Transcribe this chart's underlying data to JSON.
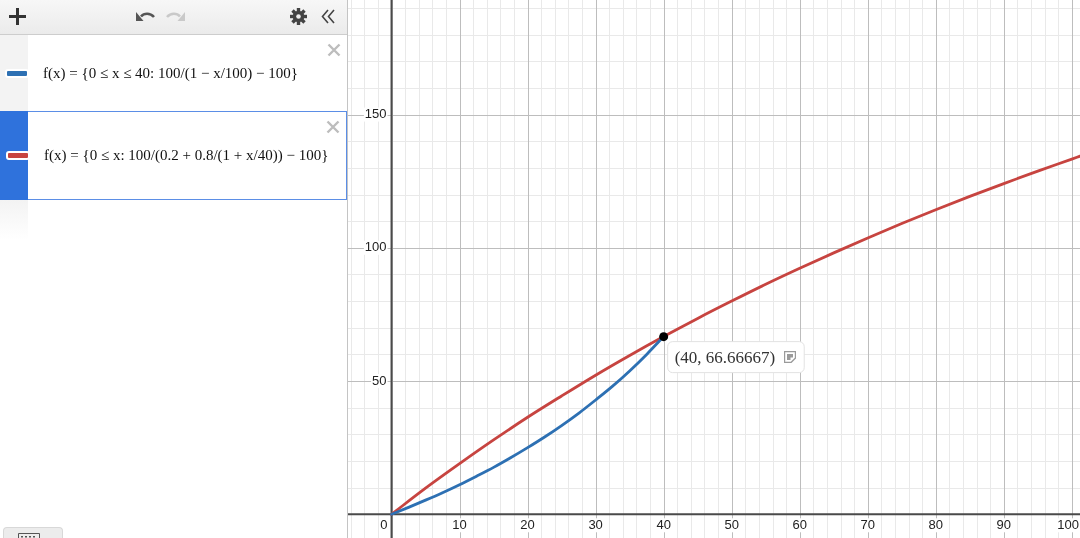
{
  "chart_data": {
    "type": "line",
    "series": [
      {
        "name": "f(x) = {0 ≤ x ≤ 40: 100/(1 − x/100) − 100}",
        "color": "#2d70b3",
        "x": [
          0,
          2.5,
          5,
          7.5,
          10,
          12.5,
          15,
          17.5,
          20,
          22.5,
          25,
          27.5,
          30,
          32.5,
          35,
          37.5,
          40
        ],
        "values": [
          0,
          2.6,
          5.3,
          8.1,
          11.1,
          14.3,
          17.6,
          21.2,
          25,
          29,
          33.3,
          37.9,
          42.9,
          48.1,
          53.8,
          60,
          66.7
        ]
      },
      {
        "name": "f(x) = {0 ≤ x: 100/(0.2 + 0.8/(1 + x/40)) − 100}",
        "color": "#c74440",
        "x": [
          0,
          5,
          10,
          15,
          20,
          25,
          30,
          35,
          40,
          45,
          50,
          55,
          60,
          65,
          70,
          75,
          80,
          85,
          90,
          95,
          100,
          101.2
        ],
        "values": [
          0,
          9.8,
          19,
          27.9,
          36.4,
          44.4,
          52.2,
          59.6,
          66.7,
          73.5,
          80,
          86.3,
          92.3,
          98.1,
          103.7,
          109.1,
          114.3,
          119.3,
          124.1,
          128.8,
          133.3,
          134.4
        ]
      }
    ],
    "xlim": [
      -6.4,
      101.2
    ],
    "ylim": [
      -8.9,
      193
    ],
    "xticks": [
      {
        "value": -6,
        "label": null
      },
      {
        "value": -4,
        "label": null
      },
      {
        "value": -2,
        "label": null
      },
      0,
      {
        "value": 2,
        "label": null
      },
      {
        "value": 4,
        "label": null
      },
      {
        "value": 6,
        "label": null
      },
      {
        "value": 8,
        "label": null
      },
      10,
      {
        "value": 12,
        "label": null
      },
      {
        "value": 14,
        "label": null
      },
      {
        "value": 16,
        "label": null
      },
      {
        "value": 18,
        "label": null
      },
      20,
      {
        "value": 22,
        "label": null
      },
      {
        "value": 24,
        "label": null
      },
      {
        "value": 26,
        "label": null
      },
      {
        "value": 28,
        "label": null
      },
      30,
      {
        "value": 32,
        "label": null
      },
      {
        "value": 34,
        "label": null
      },
      {
        "value": 36,
        "label": null
      },
      {
        "value": 38,
        "label": null
      },
      40,
      {
        "value": 42,
        "label": null
      },
      {
        "value": 44,
        "label": null
      },
      {
        "value": 46,
        "label": null
      },
      {
        "value": 48,
        "label": null
      },
      50,
      {
        "value": 52,
        "label": null
      },
      {
        "value": 54,
        "label": null
      },
      {
        "value": 56,
        "label": null
      },
      {
        "value": 58,
        "label": null
      },
      60,
      {
        "value": 62,
        "label": null
      },
      {
        "value": 64,
        "label": null
      },
      {
        "value": 66,
        "label": null
      },
      {
        "value": 68,
        "label": null
      },
      70,
      {
        "value": 72,
        "label": null
      },
      {
        "value": 74,
        "label": null
      },
      {
        "value": 76,
        "label": null
      },
      {
        "value": 78,
        "label": null
      },
      80,
      {
        "value": 82,
        "label": null
      },
      {
        "value": 84,
        "label": null
      },
      {
        "value": 86,
        "label": null
      },
      {
        "value": 88,
        "label": null
      },
      90,
      {
        "value": 92,
        "label": null
      },
      {
        "value": 94,
        "label": null
      },
      {
        "value": 96,
        "label": null
      },
      {
        "value": 98,
        "label": null
      },
      100
    ],
    "yticks": [
      {
        "value": 0,
        "label": null
      },
      {
        "value": 10,
        "label": null
      },
      {
        "value": 20,
        "label": null
      },
      {
        "value": 30,
        "label": null
      },
      {
        "value": 40,
        "label": null
      },
      50,
      {
        "value": 60,
        "label": null
      },
      {
        "value": 70,
        "label": null
      },
      {
        "value": 80,
        "label": null
      },
      {
        "value": 90,
        "label": null
      },
      100,
      {
        "value": 110,
        "label": null
      },
      {
        "value": 120,
        "label": null
      },
      {
        "value": 130,
        "label": null
      },
      {
        "value": 140,
        "label": null
      },
      150,
      {
        "value": 160,
        "label": null
      },
      {
        "value": 170,
        "label": null
      },
      {
        "value": 180,
        "label": null
      },
      {
        "value": 190,
        "label": null
      }
    ],
    "grid": true,
    "legend": "left",
    "marker": "none",
    "annotations": [
      {
        "text": "(40, 66.66667)",
        "x": 40,
        "y": 66.66667
      }
    ]
  }
}
